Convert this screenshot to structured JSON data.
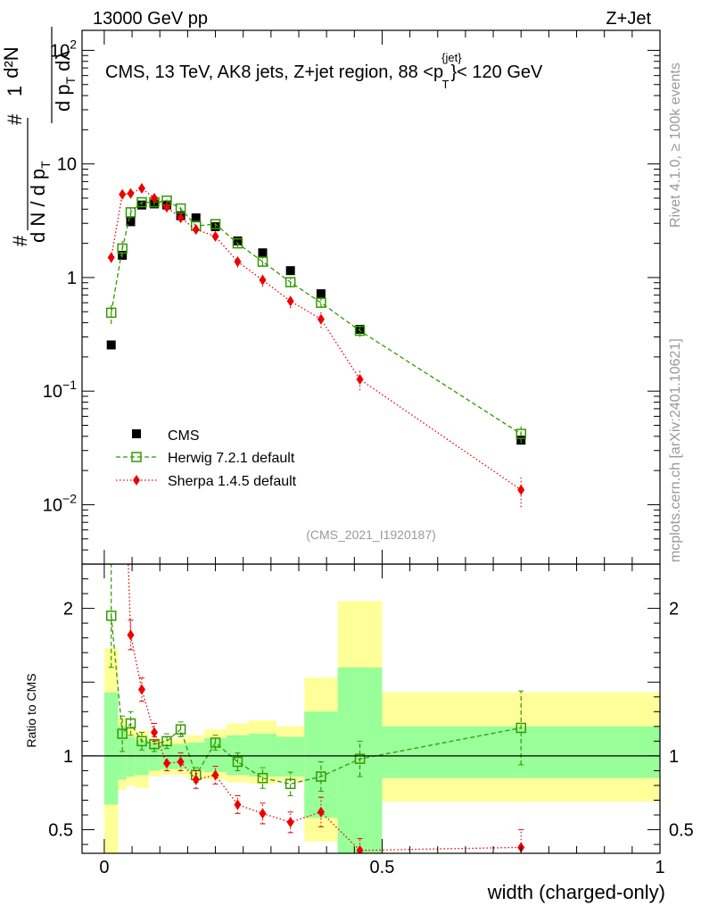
{
  "header": {
    "left": "13000 GeV pp",
    "right": "Z+Jet"
  },
  "side_labels": {
    "rivet": "Rivet 4.1.0, ≥ 100k events",
    "mcplots": "mcplots.cern.ch [arXiv:2401.10621]"
  },
  "plot_title": {
    "main": "CMS, 13 TeV, AK8 jets, Z+jet region, 88 <p",
    "sup": "{jet}",
    "sub": "T",
    "tail": "}< 120 GeV"
  },
  "analysis_id": "(CMS_2021_I1920187)",
  "ylabel_main": {
    "prefix": "#",
    "frac1_num": "1",
    "frac1_den": "d N / d p",
    "frac1_den_sub": "T",
    "frac2_num_hash": "#",
    "frac2_num": "d²N",
    "frac2_den": "d p",
    "frac2_den_sub": "T",
    "frac2_den_tail": "dλ"
  },
  "ylabel_ratio": "Ratio to CMS",
  "xlabel": "width (charged-only)",
  "colors": {
    "cms": "#000000",
    "herwig": "#339900",
    "sherpa": "#ee0000",
    "band_inner": "#99ff99",
    "band_outer": "#ffff99"
  },
  "chart_data": {
    "type": "scatter",
    "x_range": [
      -0.04,
      1.0
    ],
    "x_ticks": [
      {
        "v": 0,
        "label": "0"
      },
      {
        "v": 0.5,
        "label": "0.5"
      },
      {
        "v": 1,
        "label": "1"
      }
    ],
    "main": {
      "yscale": "log",
      "ylim": [
        0.003,
        150
      ],
      "y_ticks": [
        {
          "v": 0.01,
          "base": "10",
          "exp": "−2"
        },
        {
          "v": 0.1,
          "base": "10",
          "exp": "−1"
        },
        {
          "v": 1,
          "base": "1",
          "exp": ""
        },
        {
          "v": 10,
          "base": "10",
          "exp": ""
        },
        {
          "v": 100,
          "base": "10",
          "exp": "2"
        }
      ]
    },
    "ratio": {
      "ylim": [
        0.34,
        2.3
      ],
      "ticks": [
        {
          "v": 0.5,
          "label": "0.5"
        },
        {
          "v": 1,
          "label": "1"
        },
        {
          "v": 2,
          "label": "2"
        }
      ]
    },
    "bins": [
      {
        "lo": 0.0,
        "hi": 0.025,
        "in_lo": 0.67,
        "in_hi": 1.43,
        "out_lo": 0.2,
        "out_hi": 1.73
      },
      {
        "lo": 0.025,
        "hi": 0.04,
        "in_lo": 0.84,
        "in_hi": 1.2,
        "out_lo": 0.77,
        "out_hi": 1.26
      },
      {
        "lo": 0.04,
        "hi": 0.055,
        "in_lo": 0.86,
        "in_hi": 1.13,
        "out_lo": 0.8,
        "out_hi": 1.2
      },
      {
        "lo": 0.055,
        "hi": 0.08,
        "in_lo": 0.87,
        "in_hi": 1.11,
        "out_lo": 0.78,
        "out_hi": 1.17
      },
      {
        "lo": 0.08,
        "hi": 0.1,
        "in_lo": 0.9,
        "in_hi": 1.09,
        "out_lo": 0.86,
        "out_hi": 1.12
      },
      {
        "lo": 0.1,
        "hi": 0.125,
        "in_lo": 0.91,
        "in_hi": 1.08,
        "out_lo": 0.87,
        "out_hi": 1.11
      },
      {
        "lo": 0.125,
        "hi": 0.15,
        "in_lo": 0.91,
        "in_hi": 1.08,
        "out_lo": 0.87,
        "out_hi": 1.12
      },
      {
        "lo": 0.15,
        "hi": 0.18,
        "in_lo": 0.9,
        "in_hi": 1.09,
        "out_lo": 0.85,
        "out_hi": 1.14
      },
      {
        "lo": 0.18,
        "hi": 0.22,
        "in_lo": 0.89,
        "in_hi": 1.12,
        "out_lo": 0.84,
        "out_hi": 1.18
      },
      {
        "lo": 0.22,
        "hi": 0.26,
        "in_lo": 0.87,
        "in_hi": 1.14,
        "out_lo": 0.82,
        "out_hi": 1.22
      },
      {
        "lo": 0.26,
        "hi": 0.31,
        "in_lo": 0.86,
        "in_hi": 1.15,
        "out_lo": 0.81,
        "out_hi": 1.24
      },
      {
        "lo": 0.31,
        "hi": 0.36,
        "in_lo": 0.86,
        "in_hi": 1.13,
        "out_lo": 0.83,
        "out_hi": 1.2
      },
      {
        "lo": 0.36,
        "hi": 0.42,
        "in_lo": 0.58,
        "in_hi": 1.3,
        "out_lo": 0.42,
        "out_hi": 1.53
      },
      {
        "lo": 0.42,
        "hi": 0.5,
        "in_lo": 0.28,
        "in_hi": 1.6,
        "out_lo": 0.1,
        "out_hi": 2.05
      },
      {
        "lo": 0.5,
        "hi": 1.0,
        "in_lo": 0.85,
        "in_hi": 1.2,
        "out_lo": 0.69,
        "out_hi": 1.43
      }
    ],
    "series": [
      {
        "name": "CMS",
        "style": "square-filled",
        "x": [
          0.0125,
          0.0325,
          0.0475,
          0.0675,
          0.09,
          0.1125,
          0.1375,
          0.165,
          0.2,
          0.24,
          0.285,
          0.335,
          0.39,
          0.46,
          0.75
        ],
        "y": [
          0.255,
          1.57,
          3.1,
          4.35,
          4.45,
          4.35,
          3.5,
          3.35,
          2.8,
          2.1,
          1.65,
          1.15,
          0.72,
          0.35,
          0.037
        ],
        "err": [
          0.01,
          0.05,
          0.1,
          0.1,
          0.1,
          0.1,
          0.1,
          0.1,
          0.08,
          0.06,
          0.05,
          0.04,
          0.03,
          0.02,
          0.003
        ]
      },
      {
        "name": "Herwig 7.2.1 default",
        "style": "square-open",
        "line": "dashed",
        "x": [
          0.0125,
          0.0325,
          0.0475,
          0.0675,
          0.09,
          0.1125,
          0.1375,
          0.165,
          0.2,
          0.24,
          0.285,
          0.335,
          0.39,
          0.46,
          0.75
        ],
        "y": [
          0.49,
          1.8,
          3.75,
          4.6,
          4.6,
          4.75,
          4.05,
          2.85,
          2.95,
          2.0,
          1.38,
          0.91,
          0.6,
          0.34,
          0.042
        ],
        "err": [
          0.1,
          0.3,
          0.4,
          0.3,
          0.3,
          0.3,
          0.25,
          0.2,
          0.2,
          0.15,
          0.12,
          0.08,
          0.06,
          0.04,
          0.007
        ],
        "ratio": [
          1.95,
          1.15,
          1.22,
          1.1,
          1.08,
          1.1,
          1.18,
          0.87,
          1.09,
          0.96,
          0.85,
          0.81,
          0.86,
          0.98,
          1.19
        ],
        "ratio_err": [
          0.35,
          0.12,
          0.08,
          0.06,
          0.05,
          0.05,
          0.05,
          0.05,
          0.05,
          0.06,
          0.07,
          0.08,
          0.1,
          0.12,
          0.25
        ]
      },
      {
        "name": "Sherpa 1.4.5 default",
        "style": "diamond-filled",
        "line": "dotted",
        "x": [
          0.0125,
          0.0325,
          0.0475,
          0.0675,
          0.09,
          0.1125,
          0.1375,
          0.165,
          0.2,
          0.24,
          0.285,
          0.335,
          0.39,
          0.46,
          0.75
        ],
        "y": [
          1.5,
          5.4,
          5.5,
          6.1,
          5.0,
          4.15,
          3.35,
          2.65,
          2.3,
          1.38,
          0.95,
          0.62,
          0.43,
          0.127,
          0.0135
        ],
        "err": [
          0.15,
          0.4,
          0.4,
          0.4,
          0.35,
          0.3,
          0.25,
          0.2,
          0.2,
          0.15,
          0.12,
          0.08,
          0.07,
          0.025,
          0.004
        ],
        "ratio": [
          5.9,
          3.5,
          1.82,
          1.45,
          1.16,
          0.95,
          0.96,
          0.84,
          0.87,
          0.67,
          0.61,
          0.55,
          0.62,
          0.36,
          0.38
        ],
        "ratio_err": [
          0.5,
          0.2,
          0.1,
          0.08,
          0.06,
          0.05,
          0.06,
          0.06,
          0.06,
          0.06,
          0.07,
          0.07,
          0.1,
          0.08,
          0.12
        ]
      }
    ]
  }
}
